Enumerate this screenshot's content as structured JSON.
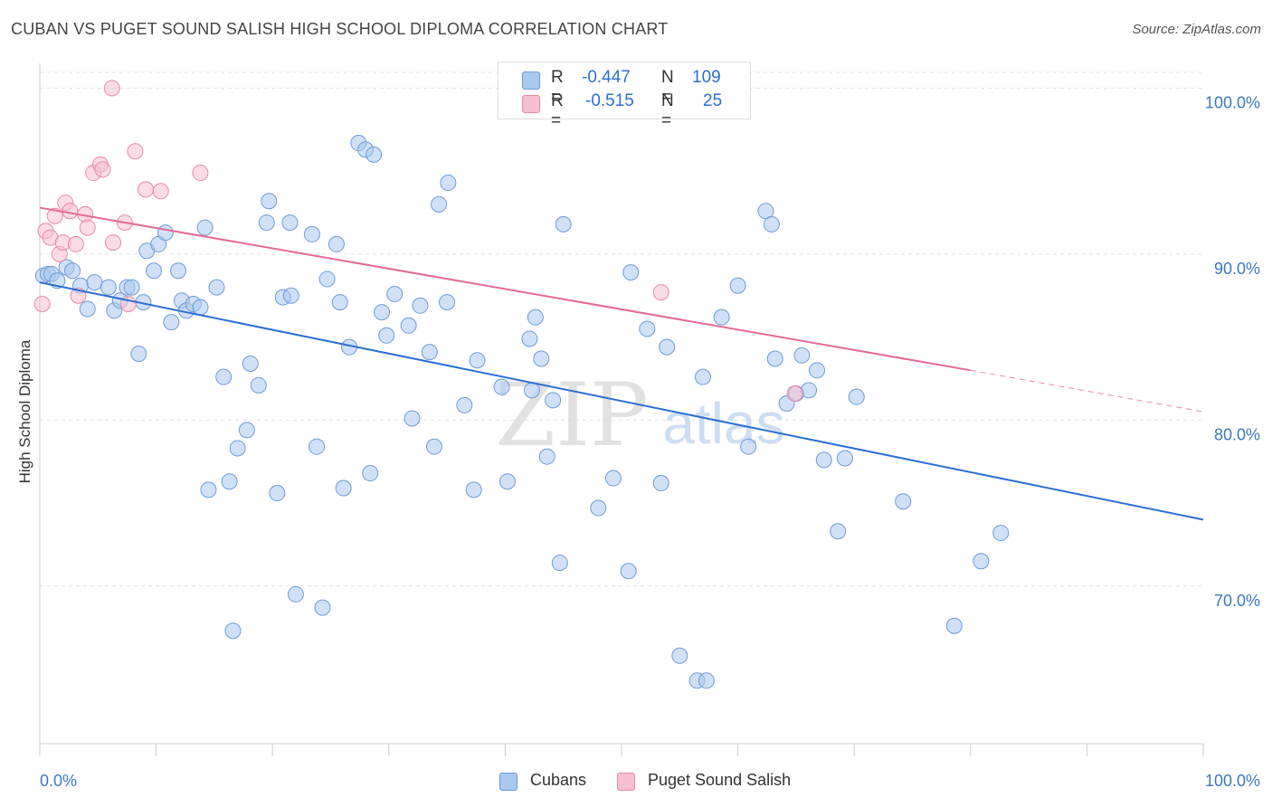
{
  "header": {
    "title": "CUBAN VS PUGET SOUND SALISH HIGH SCHOOL DIPLOMA CORRELATION CHART",
    "source": "Source: ZipAtlas.com"
  },
  "stats": [
    {
      "r_label": "R =",
      "r_value": "-0.447",
      "n_label": "N =",
      "n_value": "109",
      "color": "#a9c8f0",
      "border": "#6f9ad6"
    },
    {
      "r_label": "R =",
      "r_value": "-0.515",
      "n_label": "N =",
      "n_value": "25",
      "color": "#f8bfd0",
      "border": "#e889a6"
    }
  ],
  "legend": [
    {
      "label": "Cubans",
      "color": "#a9c8f0",
      "border": "#6f9ad6"
    },
    {
      "label": "Puget Sound Salish",
      "color": "#f8bfd0",
      "border": "#e889a6"
    }
  ],
  "watermark": {
    "zip": "ZIP",
    "atlas": "atlas"
  },
  "colors": {
    "blue": "#2a6fd0",
    "pink": "#e36a93",
    "blue_fill": "#a9c8f0",
    "pink_fill": "#f8bfd0"
  },
  "chart_data": {
    "type": "scatter",
    "title": "CUBAN VS PUGET SOUND SALISH HIGH SCHOOL DIPLOMA CORRELATION CHART",
    "xlabel": "",
    "ylabel": "High School Diploma",
    "xlim": [
      0,
      100
    ],
    "ylim": [
      60.5,
      101.5
    ],
    "x_tick_labels": [
      "0.0%",
      "100.0%"
    ],
    "y_ticks": [
      70,
      80,
      90,
      100
    ],
    "y_tick_labels": [
      "70.0%",
      "80.0%",
      "90.0%",
      "100.0%"
    ],
    "grid": true,
    "legend_position": "bottom-center",
    "series": [
      {
        "name": "Cubans",
        "color": "#6f9ad6",
        "trend": {
          "x0": 0,
          "y0": 88.3,
          "x1": 100,
          "y1": 74.0
        },
        "points": [
          [
            0.3,
            88.7
          ],
          [
            0.7,
            88.8
          ],
          [
            1.0,
            88.8
          ],
          [
            1.5,
            88.4
          ],
          [
            2.3,
            89.2
          ],
          [
            2.8,
            89.0
          ],
          [
            3.5,
            88.1
          ],
          [
            4.1,
            86.7
          ],
          [
            4.7,
            88.3
          ],
          [
            5.9,
            88.0
          ],
          [
            6.4,
            86.6
          ],
          [
            6.9,
            87.2
          ],
          [
            7.5,
            88.0
          ],
          [
            7.9,
            88.0
          ],
          [
            8.5,
            84.0
          ],
          [
            8.9,
            87.1
          ],
          [
            9.2,
            90.2
          ],
          [
            9.8,
            89.0
          ],
          [
            10.2,
            90.6
          ],
          [
            10.8,
            91.3
          ],
          [
            11.3,
            85.9
          ],
          [
            11.9,
            89.0
          ],
          [
            12.2,
            87.2
          ],
          [
            12.6,
            86.6
          ],
          [
            13.2,
            87.0
          ],
          [
            13.8,
            86.8
          ],
          [
            14.2,
            91.6
          ],
          [
            14.5,
            75.8
          ],
          [
            15.2,
            88.0
          ],
          [
            15.8,
            82.6
          ],
          [
            16.3,
            76.3
          ],
          [
            16.6,
            67.3
          ],
          [
            17.0,
            78.3
          ],
          [
            18.1,
            83.4
          ],
          [
            18.8,
            82.1
          ],
          [
            19.5,
            91.9
          ],
          [
            19.7,
            93.2
          ],
          [
            20.4,
            75.6
          ],
          [
            20.9,
            87.4
          ],
          [
            21.6,
            87.5
          ],
          [
            21.5,
            91.9
          ],
          [
            22.0,
            69.5
          ],
          [
            23.4,
            91.2
          ],
          [
            23.8,
            78.4
          ],
          [
            24.3,
            68.7
          ],
          [
            24.7,
            88.5
          ],
          [
            25.5,
            90.6
          ],
          [
            25.8,
            87.1
          ],
          [
            26.1,
            75.9
          ],
          [
            26.6,
            84.4
          ],
          [
            27.4,
            96.7
          ],
          [
            28.0,
            96.3
          ],
          [
            28.4,
            76.8
          ],
          [
            28.7,
            96.0
          ],
          [
            29.4,
            86.5
          ],
          [
            29.8,
            85.1
          ],
          [
            30.5,
            87.6
          ],
          [
            31.7,
            85.7
          ],
          [
            32.0,
            80.1
          ],
          [
            32.7,
            86.9
          ],
          [
            33.5,
            84.1
          ],
          [
            33.9,
            78.4
          ],
          [
            34.3,
            93.0
          ],
          [
            35.1,
            94.3
          ],
          [
            35.0,
            87.1
          ],
          [
            36.5,
            80.9
          ],
          [
            37.3,
            75.8
          ],
          [
            37.6,
            83.6
          ],
          [
            40.2,
            76.3
          ],
          [
            42.1,
            84.9
          ],
          [
            42.3,
            81.8
          ],
          [
            42.6,
            86.2
          ],
          [
            43.1,
            83.7
          ],
          [
            43.6,
            77.8
          ],
          [
            44.1,
            81.2
          ],
          [
            44.7,
            71.4
          ],
          [
            45.0,
            91.8
          ],
          [
            48.0,
            74.7
          ],
          [
            49.3,
            76.5
          ],
          [
            50.6,
            70.9
          ],
          [
            50.8,
            88.9
          ],
          [
            52.2,
            85.5
          ],
          [
            53.4,
            76.2
          ],
          [
            53.9,
            84.4
          ],
          [
            55.0,
            65.8
          ],
          [
            57.0,
            82.6
          ],
          [
            58.6,
            86.2
          ],
          [
            60.0,
            88.1
          ],
          [
            60.9,
            78.4
          ],
          [
            62.4,
            92.6
          ],
          [
            62.9,
            91.8
          ],
          [
            63.2,
            83.7
          ],
          [
            64.2,
            81.0
          ],
          [
            65.0,
            81.6
          ],
          [
            65.5,
            83.9
          ],
          [
            66.1,
            81.8
          ],
          [
            66.8,
            83.0
          ],
          [
            67.4,
            77.6
          ],
          [
            68.6,
            73.3
          ],
          [
            69.2,
            77.7
          ],
          [
            70.2,
            81.4
          ],
          [
            74.2,
            75.1
          ],
          [
            78.6,
            67.6
          ],
          [
            80.9,
            71.5
          ],
          [
            82.6,
            73.2
          ],
          [
            56.5,
            64.3
          ],
          [
            57.3,
            64.3
          ],
          [
            17.8,
            79.4
          ],
          [
            39.7,
            82.0
          ]
        ]
      },
      {
        "name": "Puget Sound Salish",
        "color": "#e889a6",
        "trend": {
          "x0": 0,
          "y0": 92.8,
          "x1": 80,
          "y1": 83.0
        },
        "trend_dashed_to": {
          "x": 100,
          "y": 80.5
        },
        "points": [
          [
            0.2,
            87.0
          ],
          [
            0.5,
            91.4
          ],
          [
            0.9,
            91.0
          ],
          [
            1.3,
            92.3
          ],
          [
            1.7,
            90.0
          ],
          [
            2.0,
            90.7
          ],
          [
            2.2,
            93.1
          ],
          [
            2.6,
            92.6
          ],
          [
            3.1,
            90.6
          ],
          [
            3.3,
            87.5
          ],
          [
            3.9,
            92.4
          ],
          [
            4.1,
            91.6
          ],
          [
            4.6,
            94.9
          ],
          [
            5.2,
            95.4
          ],
          [
            5.4,
            95.1
          ],
          [
            6.3,
            90.7
          ],
          [
            6.2,
            100.0
          ],
          [
            7.3,
            91.9
          ],
          [
            7.6,
            87.0
          ],
          [
            8.2,
            96.2
          ],
          [
            9.1,
            93.9
          ],
          [
            10.4,
            93.8
          ],
          [
            13.8,
            94.9
          ],
          [
            53.4,
            87.7
          ],
          [
            64.9,
            81.6
          ]
        ]
      }
    ]
  }
}
